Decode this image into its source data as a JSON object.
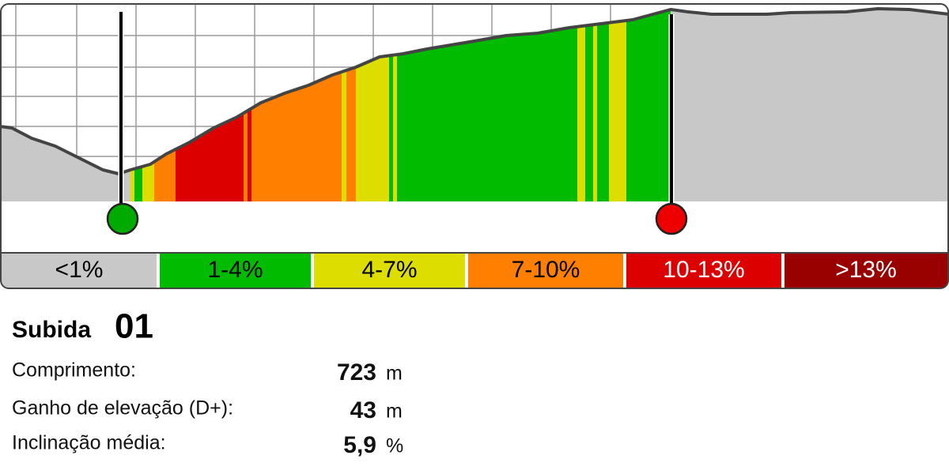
{
  "legend": [
    {
      "label": "<1%",
      "color": "#c8c8c8",
      "text_color": "#000000"
    },
    {
      "label": "1-4%",
      "color": "#00bb00",
      "text_color": "#000000"
    },
    {
      "label": "4-7%",
      "color": "#dddd00",
      "text_color": "#000000"
    },
    {
      "label": "7-10%",
      "color": "#ff8000",
      "text_color": "#000000"
    },
    {
      "label": "10-13%",
      "color": "#dd0000",
      "text_color": "#ffffff"
    },
    {
      "label": ">13%",
      "color": "#990000",
      "text_color": "#ffffff"
    }
  ],
  "title": {
    "word": "Subida",
    "number": "01"
  },
  "stats": [
    {
      "label": "Comprimento:",
      "value": "723",
      "unit": "m"
    },
    {
      "label": "Ganho de elevação (D+):",
      "value": "43",
      "unit": "m"
    },
    {
      "label": "Inclinação média:",
      "value": "5,9",
      "unit": "%"
    }
  ]
}
